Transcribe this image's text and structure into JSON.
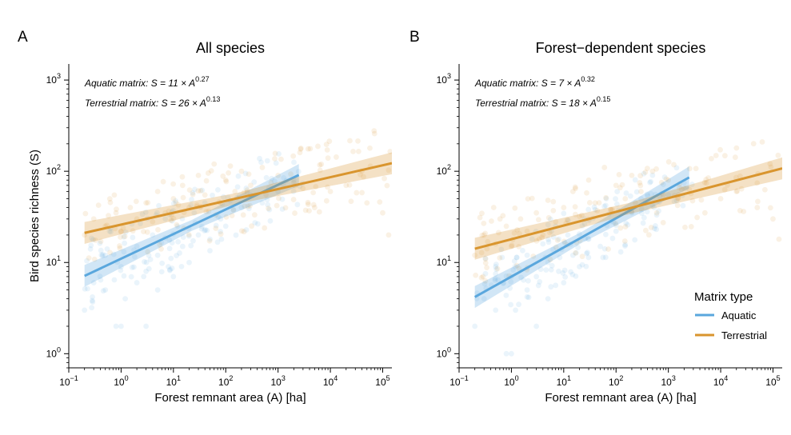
{
  "figure": {
    "ylabel": "Bird species richness (S)",
    "xlabel": "Forest remnant area (A) [ha]",
    "legend": {
      "title": "Matrix type",
      "items": [
        {
          "label": "Aquatic",
          "color": "#5aa7dd"
        },
        {
          "label": "Terrestrial",
          "color": "#d9952e"
        }
      ]
    }
  },
  "chart_data": [
    {
      "type": "scatter",
      "panel": "A",
      "title": "All species",
      "xlabel": "Forest remnant area (A) [ha]",
      "ylabel": "Bird species richness (S)",
      "x_scale": "log",
      "y_scale": "log",
      "xlim": [
        0.1,
        150000
      ],
      "ylim": [
        0.7,
        1500
      ],
      "x_ticks": [
        0.1,
        1,
        10,
        100,
        1000,
        10000,
        100000
      ],
      "x_tick_labels": [
        {
          "base": "10",
          "exp": "-1"
        },
        {
          "base": "10",
          "exp": "0"
        },
        {
          "base": "10",
          "exp": "1"
        },
        {
          "base": "10",
          "exp": "2"
        },
        {
          "base": "10",
          "exp": "3"
        },
        {
          "base": "10",
          "exp": "4"
        },
        {
          "base": "10",
          "exp": "5"
        }
      ],
      "y_ticks": [
        1,
        10,
        100,
        1000
      ],
      "y_tick_labels": [
        {
          "base": "10",
          "exp": "0"
        },
        {
          "base": "10",
          "exp": "1"
        },
        {
          "base": "10",
          "exp": "2"
        },
        {
          "base": "10",
          "exp": "3"
        }
      ],
      "annotations": [
        {
          "prefix": "Aquatic matrix: ",
          "var": "S",
          "eq": " = 11 × ",
          "base": "A",
          "exp": "0.27"
        },
        {
          "prefix": "Terrestrial matrix: ",
          "var": "S",
          "eq": " = 26 × ",
          "base": "A",
          "exp": "0.13"
        }
      ],
      "series": [
        {
          "name": "Aquatic",
          "color": "#5aa7dd",
          "fit": {
            "a": 11,
            "b": 0.27,
            "x_range": [
              0.2,
              2500
            ]
          },
          "points": [
            [
              0.2,
              3
            ],
            [
              0.3,
              6
            ],
            [
              0.5,
              5
            ],
            [
              0.8,
              2
            ],
            [
              1,
              2
            ],
            [
              1.2,
              4
            ],
            [
              2,
              6
            ],
            [
              3,
              2
            ],
            [
              3,
              8
            ],
            [
              5,
              5
            ],
            [
              5,
              12
            ],
            [
              8,
              9
            ],
            [
              10,
              7
            ],
            [
              15,
              15
            ],
            [
              20,
              10
            ],
            [
              30,
              20
            ],
            [
              50,
              18
            ],
            [
              80,
              30
            ],
            [
              100,
              25
            ],
            [
              200,
              40
            ],
            [
              300,
              55
            ],
            [
              500,
              45
            ],
            [
              1000,
              60
            ],
            [
              2000,
              80
            ],
            [
              0.5,
              12
            ],
            [
              1,
              9
            ],
            [
              2,
              15
            ],
            [
              4,
              20
            ],
            [
              7,
              30
            ],
            [
              12,
              25
            ],
            [
              25,
              35
            ],
            [
              40,
              45
            ]
          ]
        },
        {
          "name": "Terrestrial",
          "color": "#d9952e",
          "fit": {
            "a": 26,
            "b": 0.13,
            "x_range": [
              0.2,
              150000
            ]
          },
          "points": [
            [
              0.2,
              20
            ],
            [
              0.3,
              30
            ],
            [
              0.5,
              25
            ],
            [
              0.8,
              35
            ],
            [
              1,
              22
            ],
            [
              1.5,
              40
            ],
            [
              2,
              30
            ],
            [
              3,
              45
            ],
            [
              4,
              28
            ],
            [
              5,
              60
            ],
            [
              7,
              35
            ],
            [
              10,
              50
            ],
            [
              15,
              70
            ],
            [
              20,
              40
            ],
            [
              30,
              90
            ],
            [
              40,
              55
            ],
            [
              60,
              120
            ],
            [
              80,
              45
            ],
            [
              100,
              80
            ],
            [
              150,
              60
            ],
            [
              200,
              100
            ],
            [
              300,
              70
            ],
            [
              500,
              110
            ],
            [
              800,
              65
            ],
            [
              1000,
              90
            ],
            [
              2000,
              75
            ],
            [
              5000,
              40
            ],
            [
              10000,
              60
            ],
            [
              50000,
              45
            ],
            [
              100000,
              35
            ],
            [
              130000,
              20
            ],
            [
              20000,
              70
            ]
          ]
        }
      ]
    },
    {
      "type": "scatter",
      "panel": "B",
      "title": "Forest−dependent species",
      "xlabel": "Forest remnant area (A) [ha]",
      "ylabel": "",
      "x_scale": "log",
      "y_scale": "log",
      "xlim": [
        0.1,
        150000
      ],
      "ylim": [
        0.7,
        1500
      ],
      "x_ticks": [
        0.1,
        1,
        10,
        100,
        1000,
        10000,
        100000
      ],
      "x_tick_labels": [
        {
          "base": "10",
          "exp": "-1"
        },
        {
          "base": "10",
          "exp": "0"
        },
        {
          "base": "10",
          "exp": "1"
        },
        {
          "base": "10",
          "exp": "2"
        },
        {
          "base": "10",
          "exp": "3"
        },
        {
          "base": "10",
          "exp": "4"
        },
        {
          "base": "10",
          "exp": "5"
        }
      ],
      "y_ticks": [
        1,
        10,
        100,
        1000
      ],
      "y_tick_labels": [
        {
          "base": "10",
          "exp": "0"
        },
        {
          "base": "10",
          "exp": "1"
        },
        {
          "base": "10",
          "exp": "2"
        },
        {
          "base": "10",
          "exp": "3"
        }
      ],
      "annotations": [
        {
          "prefix": "Aquatic matrix: ",
          "var": "S",
          "eq": " = 7 × ",
          "base": "A",
          "exp": "0.32"
        },
        {
          "prefix": "Terrestrial matrix: ",
          "var": "S",
          "eq": " = 18 × ",
          "base": "A",
          "exp": "0.15"
        }
      ],
      "series": [
        {
          "name": "Aquatic",
          "color": "#5aa7dd",
          "fit": {
            "a": 7,
            "b": 0.32,
            "x_range": [
              0.2,
              2500
            ]
          },
          "points": [
            [
              0.2,
              2
            ],
            [
              0.3,
              4
            ],
            [
              0.5,
              3
            ],
            [
              0.8,
              1
            ],
            [
              1,
              1
            ],
            [
              1.2,
              3
            ],
            [
              2,
              5
            ],
            [
              3,
              2
            ],
            [
              3,
              7
            ],
            [
              5,
              4
            ],
            [
              5,
              10
            ],
            [
              8,
              8
            ],
            [
              10,
              6
            ],
            [
              15,
              12
            ],
            [
              20,
              9
            ],
            [
              30,
              18
            ],
            [
              50,
              15
            ],
            [
              80,
              28
            ],
            [
              100,
              22
            ],
            [
              200,
              35
            ],
            [
              300,
              50
            ],
            [
              500,
              42
            ],
            [
              1000,
              55
            ],
            [
              2000,
              75
            ],
            [
              0.5,
              9
            ],
            [
              1,
              7
            ],
            [
              2,
              12
            ],
            [
              4,
              16
            ],
            [
              7,
              25
            ],
            [
              12,
              20
            ],
            [
              25,
              30
            ],
            [
              40,
              38
            ]
          ]
        },
        {
          "name": "Terrestrial",
          "color": "#d9952e",
          "fit": {
            "a": 18,
            "b": 0.15,
            "x_range": [
              0.2,
              150000
            ]
          },
          "points": [
            [
              0.2,
              12
            ],
            [
              0.3,
              20
            ],
            [
              0.5,
              16
            ],
            [
              0.8,
              25
            ],
            [
              1,
              15
            ],
            [
              1.5,
              30
            ],
            [
              2,
              22
            ],
            [
              3,
              35
            ],
            [
              4,
              20
            ],
            [
              5,
              48
            ],
            [
              7,
              28
            ],
            [
              10,
              40
            ],
            [
              15,
              60
            ],
            [
              20,
              32
            ],
            [
              30,
              80
            ],
            [
              40,
              45
            ],
            [
              60,
              110
            ],
            [
              80,
              38
            ],
            [
              100,
              70
            ],
            [
              150,
              50
            ],
            [
              200,
              90
            ],
            [
              300,
              60
            ],
            [
              500,
              100
            ],
            [
              800,
              55
            ],
            [
              1000,
              80
            ],
            [
              2000,
              65
            ],
            [
              5000,
              35
            ],
            [
              10000,
              50
            ],
            [
              50000,
              40
            ],
            [
              100000,
              30
            ],
            [
              130000,
              18
            ],
            [
              20000,
              60
            ]
          ]
        }
      ]
    }
  ]
}
